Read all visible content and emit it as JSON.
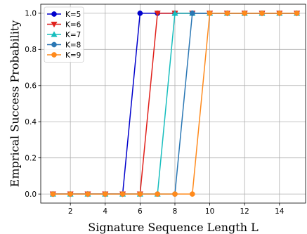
{
  "chart_data": {
    "type": "line",
    "xlabel": "Signature Sequence Length L",
    "ylabel": "Emprical Success Probability",
    "xlim": [
      0.3,
      15.5
    ],
    "ylim": [
      -0.05,
      1.05
    ],
    "xticks": [
      2,
      4,
      6,
      8,
      10,
      12,
      14
    ],
    "yticks": [
      0.0,
      0.2,
      0.4,
      0.6,
      0.8,
      1.0
    ],
    "grid": true,
    "legend_position": "top-left",
    "x": [
      1,
      2,
      3,
      4,
      5,
      6,
      7,
      8,
      9,
      10,
      11,
      12,
      13,
      14,
      15
    ],
    "series": [
      {
        "name": "K=5",
        "color": "#0000cc",
        "marker": "circle",
        "values": [
          0,
          0,
          0,
          0,
          0,
          1,
          1,
          1,
          1,
          1,
          1,
          1,
          1,
          1,
          1
        ]
      },
      {
        "name": "K=6",
        "color": "#e0201b",
        "marker": "triangle-down",
        "values": [
          0,
          0,
          0,
          0,
          0,
          0,
          1,
          1,
          1,
          1,
          1,
          1,
          1,
          1,
          1
        ]
      },
      {
        "name": "K=7",
        "color": "#17bebe",
        "marker": "triangle-up",
        "values": [
          0,
          0,
          0,
          0,
          0,
          0,
          0,
          1,
          1,
          1,
          1,
          1,
          1,
          1,
          1
        ]
      },
      {
        "name": "K=8",
        "color": "#2a77b4",
        "marker": "circle",
        "values": [
          0,
          0,
          0,
          0,
          0,
          0,
          0,
          0,
          1,
          1,
          1,
          1,
          1,
          1,
          1
        ]
      },
      {
        "name": "K=9",
        "color": "#ff8a1c",
        "marker": "circle",
        "values": [
          0,
          0,
          0,
          0,
          0,
          0,
          0,
          0,
          0,
          1,
          1,
          1,
          1,
          1,
          1
        ]
      }
    ]
  }
}
